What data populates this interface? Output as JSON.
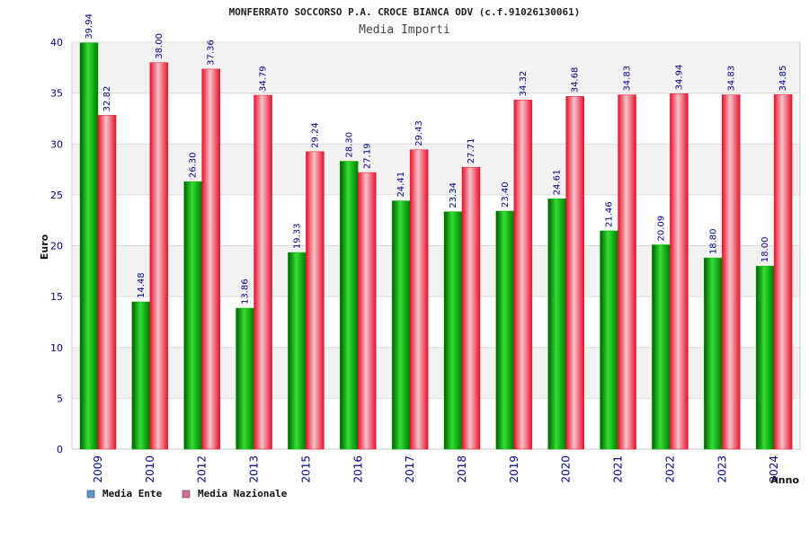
{
  "chart_data": {
    "type": "bar",
    "title": "MONFERRATO SOCCORSO P.A. CROCE BIANCA ODV (c.f.91026130061)",
    "subtitle": "Media Importi",
    "xlabel": "Anno",
    "ylabel": "Euro",
    "ylim": [
      0,
      40
    ],
    "yticks": [
      0,
      5,
      10,
      15,
      20,
      25,
      30,
      35,
      40
    ],
    "grid": true,
    "legend_position": "bottom-left",
    "categories": [
      "2009",
      "2010",
      "2012",
      "2013",
      "2015",
      "2016",
      "2017",
      "2018",
      "2019",
      "2020",
      "2021",
      "2022",
      "2023",
      "2024"
    ],
    "series": [
      {
        "name": "Media Ente",
        "color": "#00b000",
        "legend_color": "#5b9bd5",
        "values": [
          39.94,
          14.48,
          26.3,
          13.86,
          19.33,
          28.3,
          24.41,
          23.34,
          23.4,
          24.61,
          21.46,
          20.09,
          18.8,
          18.0
        ],
        "labels": [
          "39.94",
          "14.48",
          "26.30",
          "13.86",
          "19.33",
          "28.30",
          "24.41",
          "23.34",
          "23.40",
          "24.61",
          "21.46",
          "20.09",
          "18.80",
          "18.00"
        ]
      },
      {
        "name": "Media Nazionale",
        "color": "#e8112d",
        "legend_color": "#d86aa0",
        "values": [
          32.82,
          38.0,
          37.36,
          34.79,
          29.24,
          27.19,
          29.43,
          27.71,
          34.32,
          34.68,
          34.83,
          34.94,
          34.83,
          34.85
        ],
        "labels": [
          "32.82",
          "38.00",
          "37.36",
          "34.79",
          "29.24",
          "27.19",
          "29.43",
          "27.71",
          "34.32",
          "34.68",
          "34.83",
          "34.94",
          "34.83",
          "34.85"
        ]
      }
    ]
  }
}
